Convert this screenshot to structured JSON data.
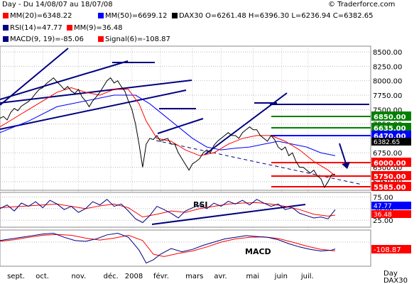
{
  "header": {
    "period": "Day - Du 14/08/07 au 18/07/08",
    "copyright": "© Traderforce.com",
    "mm20": "MM(20)=6348.22",
    "mm50": "MM(50)=6699.12",
    "ohlc": "DAX30 O=6261.48 H=6396.30 L=6236.94 C=6382.65",
    "rsi": "RSI(14)=47.77",
    "mm9": "MM(9)=36.48",
    "macd": "MACD(9, 19)=-85.06",
    "signal": "Signal(6)=-108.87"
  },
  "colors": {
    "price": "#000000",
    "mm20": "#ff0000",
    "mm50": "#0000ff",
    "trendline": "#000080",
    "support": "#ff0000",
    "resistance": "#008000",
    "pivot": "#0000ff"
  },
  "chart_data": [
    {
      "type": "line",
      "name": "DAX30 daily price",
      "x_ticks": [
        "sept.",
        "oct.",
        "nov.",
        "déc.",
        "2008",
        "févr.",
        "mars",
        "avr.",
        "mai",
        "juin",
        "juil."
      ],
      "y_ticks": [
        6250,
        6500,
        6750,
        7000,
        7250,
        7500,
        7750,
        8000,
        8250,
        8500
      ],
      "ylim": [
        6100,
        8600
      ],
      "axis_label_bottom": "Day",
      "axis_label_bottom2": "DAX30",
      "series": [
        {
          "name": "DAX30",
          "x": [
            0,
            5,
            10,
            15,
            20,
            25,
            30,
            35,
            40,
            45,
            50,
            55,
            60,
            65,
            70,
            75,
            80,
            85,
            90,
            95,
            100,
            105,
            110,
            115,
            120,
            125,
            130,
            135,
            140,
            145,
            150,
            155,
            160,
            165,
            170,
            175,
            180,
            185,
            190,
            195,
            200,
            205,
            210,
            215,
            220,
            225,
            230,
            235,
            240,
            245,
            250,
            255,
            260,
            265,
            270,
            275,
            280,
            285,
            290,
            295,
            300,
            305,
            310,
            315,
            320,
            325,
            330,
            335,
            340,
            345,
            350,
            355,
            360,
            365,
            370,
            375,
            380,
            385,
            390,
            395,
            400,
            405,
            410,
            415,
            420,
            425,
            430,
            435,
            440,
            445,
            450,
            455,
            460,
            465,
            470
          ],
          "y": [
            7350,
            7380,
            7320,
            7450,
            7520,
            7480,
            7560,
            7600,
            7640,
            7700,
            7780,
            7850,
            7880,
            7950,
            8000,
            8050,
            7980,
            7920,
            7850,
            7900,
            7820,
            7780,
            7850,
            7720,
            7650,
            7550,
            7650,
            7720,
            7800,
            7900,
            8000,
            8050,
            7960,
            8000,
            7900,
            7820,
            7650,
            7500,
            7250,
            6900,
            6500,
            6900,
            7000,
            6980,
            7050,
            6950,
            6980,
            7000,
            6900,
            6900,
            6750,
            6650,
            6550,
            6450,
            6560,
            6600,
            6650,
            6750,
            6800,
            6750,
            6880,
            6950,
            7000,
            7050,
            7100,
            7050,
            7050,
            7000,
            7100,
            7150,
            7200,
            7150,
            7150,
            7050,
            7000,
            6950,
            7050,
            6980,
            6850,
            6800,
            6850,
            6700,
            6750,
            6600,
            6500,
            6500,
            6450,
            6400,
            6450,
            6350,
            6300,
            6150,
            6250,
            6370,
            6380
          ]
        },
        {
          "name": "MM(20)",
          "x": [
            0,
            20,
            40,
            60,
            80,
            100,
            120,
            140,
            160,
            180,
            195,
            205,
            220,
            240,
            260,
            280,
            300,
            320,
            340,
            360,
            380,
            400,
            420,
            440,
            460,
            470
          ],
          "y": [
            7200,
            7350,
            7500,
            7650,
            7800,
            7880,
            7800,
            7750,
            7850,
            7850,
            7600,
            7300,
            7000,
            6950,
            6800,
            6700,
            6750,
            6900,
            7000,
            7050,
            7050,
            6950,
            6800,
            6600,
            6450,
            6350
          ]
        },
        {
          "name": "MM(50)",
          "x": [
            0,
            40,
            80,
            120,
            160,
            190,
            210,
            230,
            250,
            270,
            290,
            310,
            330,
            350,
            370,
            390,
            410,
            430,
            450,
            470
          ],
          "y": [
            7100,
            7300,
            7550,
            7650,
            7750,
            7750,
            7600,
            7400,
            7200,
            7000,
            6850,
            6800,
            6830,
            6850,
            6900,
            6950,
            6900,
            6850,
            6750,
            6700
          ]
        }
      ],
      "levels": [
        {
          "label": "6850.00",
          "value": 6850,
          "color": "#008000"
        },
        {
          "label": "6635.00",
          "value": 6635,
          "color": "#008000"
        },
        {
          "label": "6470.00",
          "value": 6470,
          "color": "#0000ff"
        },
        {
          "label": "6000.00",
          "value": 6000,
          "color": "#ff0000"
        },
        {
          "label": "5750.00",
          "value": 5750,
          "color": "#ff0000"
        },
        {
          "label": "5585.00",
          "value": 5585,
          "color": "#ff0000"
        }
      ],
      "current_price_label": "6382.65"
    },
    {
      "type": "line",
      "name": "RSI",
      "label": "RSI",
      "y_ticks": [
        25,
        50,
        75
      ],
      "ylim": [
        10,
        85
      ],
      "value_labels": [
        "47.77",
        "36.48"
      ],
      "series": [
        {
          "name": "RSI(14)",
          "x": [
            0,
            10,
            20,
            30,
            40,
            50,
            60,
            70,
            80,
            90,
            100,
            110,
            120,
            130,
            140,
            150,
            160,
            170,
            180,
            190,
            200,
            210,
            220,
            230,
            240,
            250,
            260,
            270,
            280,
            290,
            300,
            310,
            320,
            330,
            340,
            350,
            360,
            370,
            380,
            390,
            400,
            410,
            420,
            430,
            440,
            450,
            460,
            470
          ],
          "y": [
            50,
            58,
            45,
            62,
            55,
            65,
            52,
            68,
            60,
            48,
            55,
            42,
            50,
            65,
            58,
            70,
            55,
            60,
            45,
            28,
            20,
            35,
            55,
            48,
            40,
            30,
            45,
            52,
            58,
            50,
            62,
            55,
            66,
            60,
            68,
            58,
            70,
            62,
            55,
            60,
            48,
            52,
            40,
            35,
            30,
            32,
            28,
            48
          ]
        },
        {
          "name": "MM(9)",
          "x": [
            0,
            20,
            40,
            60,
            80,
            100,
            120,
            140,
            160,
            180,
            200,
            220,
            240,
            260,
            280,
            300,
            320,
            340,
            360,
            380,
            400,
            420,
            440,
            460,
            470
          ],
          "y": [
            52,
            54,
            56,
            58,
            60,
            55,
            50,
            56,
            60,
            52,
            32,
            38,
            45,
            42,
            50,
            55,
            60,
            62,
            63,
            60,
            55,
            48,
            38,
            34,
            36
          ]
        }
      ]
    },
    {
      "type": "line",
      "name": "MACD",
      "label": "MACD",
      "value_labels": [
        "-108.87"
      ],
      "series": [
        {
          "name": "MACD(9, 19)",
          "x": [
            0,
            15,
            30,
            45,
            60,
            75,
            90,
            105,
            120,
            135,
            150,
            165,
            180,
            195,
            205,
            215,
            225,
            240,
            255,
            270,
            285,
            300,
            315,
            330,
            345,
            360,
            375,
            390,
            405,
            420,
            435,
            450,
            465,
            470
          ],
          "y": [
            20,
            40,
            60,
            80,
            100,
            110,
            60,
            20,
            10,
            40,
            90,
            110,
            60,
            -100,
            -260,
            -220,
            -150,
            -80,
            -120,
            -90,
            -40,
            0,
            40,
            60,
            80,
            70,
            60,
            30,
            -20,
            -60,
            -90,
            -110,
            -100,
            -85
          ]
        },
        {
          "name": "Signal(6)",
          "x": [
            0,
            20,
            40,
            60,
            80,
            100,
            120,
            140,
            160,
            180,
            200,
            215,
            230,
            250,
            270,
            290,
            310,
            330,
            350,
            370,
            390,
            410,
            430,
            450,
            470
          ],
          "y": [
            10,
            30,
            60,
            85,
            95,
            85,
            50,
            25,
            50,
            85,
            20,
            -150,
            -180,
            -140,
            -110,
            -60,
            0,
            40,
            60,
            65,
            45,
            0,
            -50,
            -90,
            -109
          ]
        }
      ]
    }
  ]
}
